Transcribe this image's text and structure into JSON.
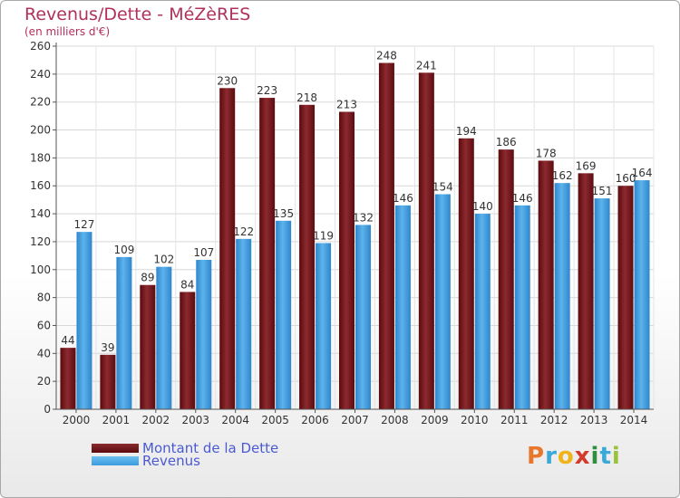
{
  "header": {
    "title": "Revenus/Dette - MéZèRES",
    "subtitle": "(en milliers d'€)"
  },
  "colors": {
    "dette": "#7a1418",
    "revenus": "#3c9be0",
    "title": "#b0305e",
    "legend_text": "#4a5ad0"
  },
  "chart_data": {
    "type": "bar",
    "title": "Revenus/Dette - MéZèRES",
    "subtitle": "(en milliers d'€)",
    "categories": [
      "2000",
      "2001",
      "2002",
      "2003",
      "2004",
      "2005",
      "2006",
      "2007",
      "2008",
      "2009",
      "2010",
      "2011",
      "2012",
      "2013",
      "2014"
    ],
    "series": [
      {
        "name": "Montant de la Dette",
        "values": [
          44,
          39,
          89,
          84,
          230,
          223,
          218,
          213,
          248,
          241,
          194,
          186,
          178,
          169,
          160
        ]
      },
      {
        "name": "Revenus",
        "values": [
          127,
          109,
          102,
          107,
          122,
          135,
          119,
          132,
          146,
          154,
          140,
          146,
          162,
          151,
          164
        ]
      }
    ],
    "ylim": [
      0,
      260
    ],
    "yticks": [
      0,
      20,
      40,
      60,
      80,
      100,
      120,
      140,
      160,
      180,
      200,
      220,
      240,
      260
    ],
    "grid": true,
    "legend_position": "bottom-left"
  },
  "legend": {
    "dette_label": "Montant de la Dette",
    "revenus_label": "Revenus"
  },
  "logo": {
    "letters": [
      "P",
      "r",
      "o",
      "x",
      "i",
      "t",
      "i"
    ],
    "colors": [
      "#e8762b",
      "#3aa8d8",
      "#f0b419",
      "#d43a2a",
      "#2f8f3e",
      "#3aa8d8",
      "#9ac23c"
    ]
  }
}
